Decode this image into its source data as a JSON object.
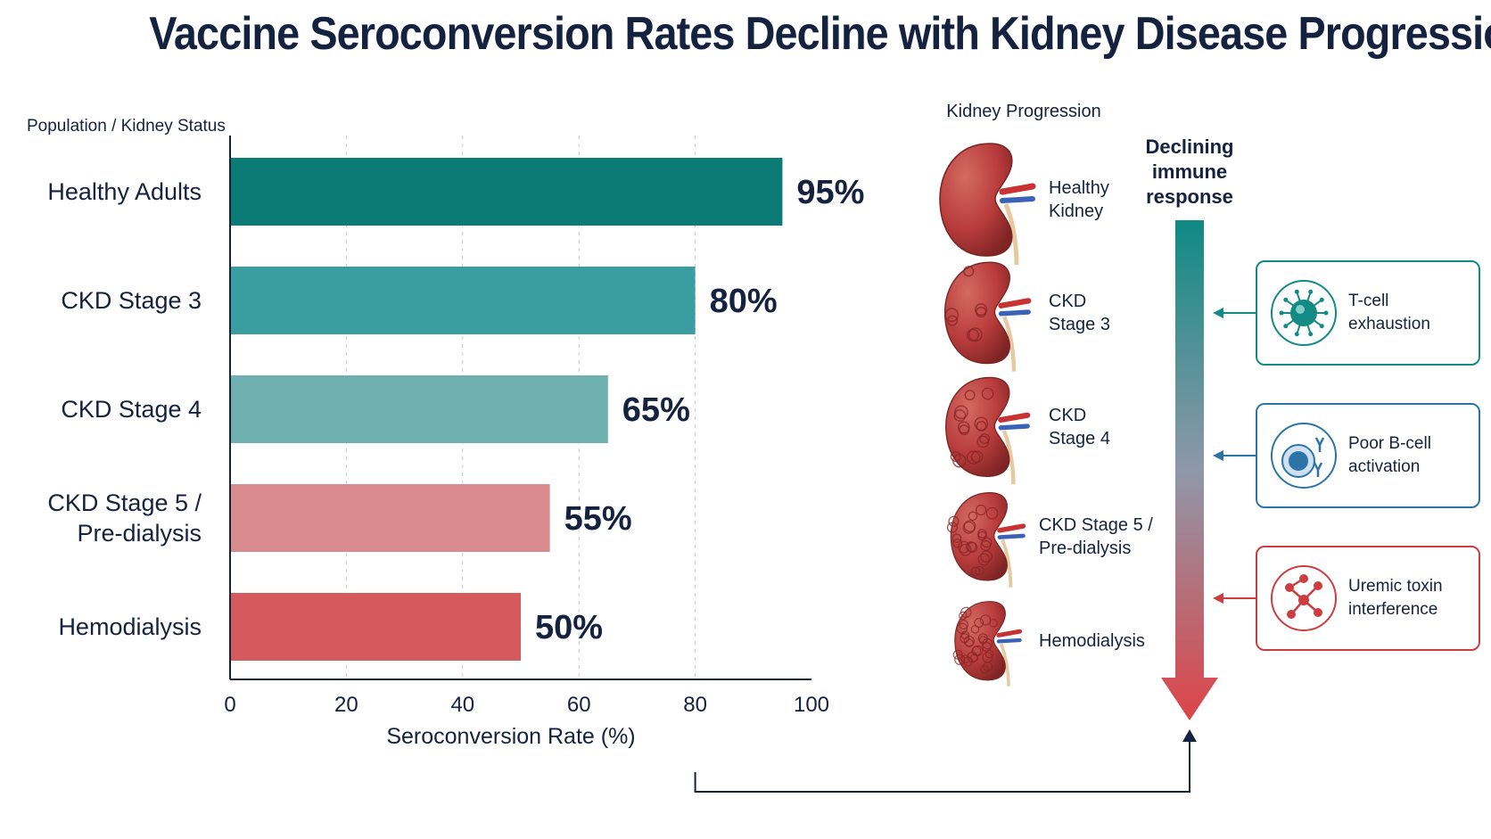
{
  "title": "Vaccine Seroconversion Rates Decline with Kidney Disease Progression.",
  "colors": {
    "text": "#15223f",
    "teal_dark": "#0b7b76",
    "teal_mid": "#3a9ea1",
    "teal_light": "#6fb1b0",
    "rose": "#d98a8c",
    "red": "#d45a5d",
    "kidney": "#b73b3b"
  },
  "chart_data": {
    "type": "bar",
    "orientation": "horizontal",
    "ylabel": "Population / Kidney Status",
    "xlabel": "Seroconversion Rate (%)",
    "xlim": [
      0,
      100
    ],
    "xticks": [
      0,
      20,
      40,
      60,
      80,
      100
    ],
    "grid": "vertical dashed",
    "categories": [
      "Healthy Adults",
      "CKD Stage 3",
      "CKD Stage 4",
      "CKD Stage 5 / Pre-dialysis",
      "Hemodialysis"
    ],
    "category_lines": [
      [
        "Healthy Adults"
      ],
      [
        "CKD Stage 3"
      ],
      [
        "CKD Stage 4"
      ],
      [
        "CKD Stage 5 /",
        "Pre-dialysis"
      ],
      [
        "Hemodialysis"
      ]
    ],
    "values": [
      95,
      80,
      65,
      55,
      50
    ],
    "value_labels": [
      "95%",
      "80%",
      "65%",
      "55%",
      "50%"
    ],
    "bar_colors": [
      "#0b7b76",
      "#3a9ea1",
      "#6fb1b0",
      "#d98a8c",
      "#d45a5d"
    ]
  },
  "progression": {
    "heading": "Kidney Progression",
    "stages": [
      {
        "lines": [
          "Healthy",
          "Kidney"
        ],
        "severity": 0
      },
      {
        "lines": [
          "CKD",
          "Stage 3"
        ],
        "severity": 1
      },
      {
        "lines": [
          "CKD",
          "Stage 4"
        ],
        "severity": 2
      },
      {
        "lines": [
          "CKD Stage 5 /",
          "Pre-dialysis"
        ],
        "severity": 3
      },
      {
        "lines": [
          "Hemodialysis"
        ],
        "severity": 4
      }
    ]
  },
  "immune": {
    "heading_lines": [
      "Declining",
      "immune",
      "response"
    ],
    "mechanisms": [
      {
        "label": "T-cell exhaustion",
        "icon": "t-cell-icon",
        "color": "#138a84"
      },
      {
        "label": "Poor B-cell activation",
        "icon": "b-cell-icon",
        "color": "#2c74a8"
      },
      {
        "label": "Uremic toxin interference",
        "icon": "molecule-icon",
        "color": "#cc3d40"
      }
    ]
  }
}
